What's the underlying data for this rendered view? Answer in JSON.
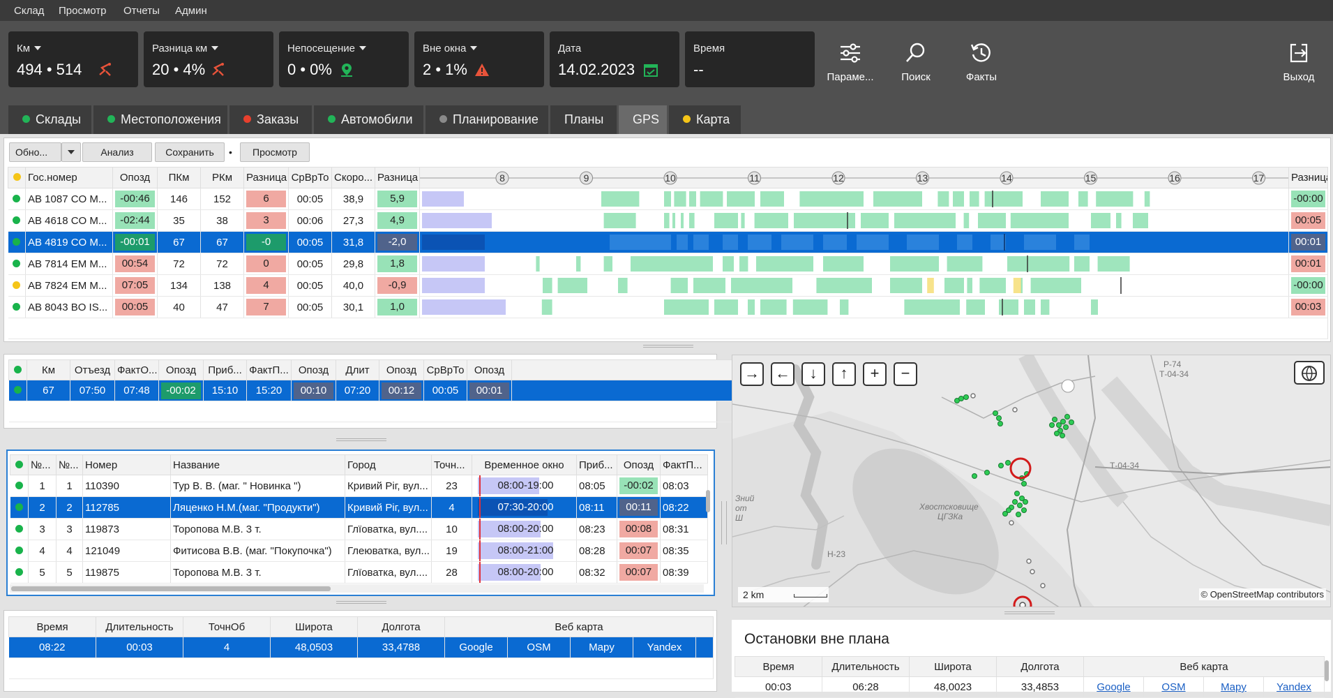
{
  "menu": [
    "Склад",
    "Просмотр",
    "Отчеты",
    "Админ"
  ],
  "kpis": [
    {
      "label": "Км",
      "value": "494 • 514",
      "icon": "route-icon",
      "icon_color": "#e8533a"
    },
    {
      "label": "Разница км",
      "value": "20 • 4%",
      "icon": "route-icon",
      "icon_color": "#e8533a"
    },
    {
      "label": "Непосещение",
      "value": "0 • 0%",
      "icon": "location-pin-icon",
      "icon_color": "#22b458"
    },
    {
      "label": "Вне окна",
      "value": "2 • 1%",
      "icon": "warning-icon",
      "icon_color": "#e8533a"
    },
    {
      "label": "Дата",
      "value": "14.02.2023",
      "icon": "calendar-check-icon",
      "icon_color": "#22b458"
    },
    {
      "label": "Время",
      "value": "--"
    }
  ],
  "toolbar": {
    "params": "Параме...",
    "search": "Поиск",
    "facts": "Факты",
    "exit": "Выход"
  },
  "tabs": [
    {
      "label": "Склады",
      "dot": "#22b458"
    },
    {
      "label": "Местоположения",
      "dot": "#22b458"
    },
    {
      "label": "Заказы",
      "dot": "#e8402d"
    },
    {
      "label": "Автомобили",
      "dot": "#22b458"
    },
    {
      "label": "Планирование",
      "dot": "#8a8a8a"
    },
    {
      "label": "Планы"
    },
    {
      "label": "GPS",
      "active": true
    },
    {
      "label": "Карта",
      "dot": "#f5c518"
    }
  ],
  "gps_toolbar": {
    "refresh": "Обно...",
    "analysis": "Анализ",
    "save": "Сохранить",
    "view": "Просмотр"
  },
  "vehicles": {
    "headers": [
      "Гос.номер",
      "Опозд",
      "ПКм",
      "РКм",
      "Разница",
      "СрВрТо",
      "Скоро...",
      "Разница",
      "Разница"
    ],
    "timeline_hours": [
      "8",
      "9",
      "10",
      "11",
      "12",
      "13",
      "14",
      "15",
      "16",
      "17"
    ],
    "rows": [
      {
        "status": "green",
        "plate": "AB 1087 CO M...",
        "late": "-00:46",
        "late_c": "green",
        "pkm": "146",
        "rkm": "152",
        "diff": "6",
        "diff_c": "red",
        "avg": "00:05",
        "speed": "38,9",
        "diff2": "5,9",
        "diff2_c": "green",
        "diff3": "-00:00",
        "diff3_c": "green"
      },
      {
        "status": "green",
        "plate": "AB 4618 CO M...",
        "late": "-02:44",
        "late_c": "green",
        "pkm": "35",
        "rkm": "38",
        "diff": "3",
        "diff_c": "red",
        "avg": "00:06",
        "speed": "27,3",
        "diff2": "4,9",
        "diff2_c": "green",
        "diff3": "00:05",
        "diff3_c": "red"
      },
      {
        "status": "green",
        "plate": "AB 4819 CO M...",
        "late": "-00:01",
        "late_c": "teal",
        "pkm": "67",
        "rkm": "67",
        "diff": "-0",
        "diff_c": "teal",
        "avg": "00:05",
        "speed": "31,8",
        "diff2": "-2,0",
        "diff2_c": "dk",
        "diff3": "00:01",
        "diff3_c": "dk",
        "selected": true
      },
      {
        "status": "green",
        "plate": "AB 7814 EM M...",
        "late": "00:54",
        "late_c": "red",
        "pkm": "72",
        "rkm": "72",
        "diff": "0",
        "diff_c": "red",
        "avg": "00:05",
        "speed": "29,8",
        "diff2": "1,8",
        "diff2_c": "green",
        "diff3": "00:01",
        "diff3_c": "red"
      },
      {
        "status": "yellow",
        "plate": "AB 7824 EM M...",
        "late": "07:05",
        "late_c": "red",
        "pkm": "134",
        "rkm": "138",
        "diff": "4",
        "diff_c": "red",
        "avg": "00:05",
        "speed": "40,0",
        "diff2": "-0,9",
        "diff2_c": "red",
        "diff3": "-00:00",
        "diff3_c": "green"
      },
      {
        "status": "green",
        "plate": "AB 8043 BO IS...",
        "late": "00:05",
        "late_c": "red",
        "pkm": "40",
        "rkm": "47",
        "diff": "7",
        "diff_c": "red",
        "avg": "00:05",
        "speed": "30,1",
        "diff2": "1,0",
        "diff2_c": "green",
        "diff3": "00:03",
        "diff3_c": "red"
      }
    ]
  },
  "trip": {
    "headers": [
      "Км",
      "Отъезд",
      "ФактО...",
      "Опозд",
      "Приб...",
      "ФактП...",
      "Опозд",
      "Длит",
      "Опозд",
      "СрВрТо",
      "Опозд"
    ],
    "row": [
      "67",
      "07:50",
      "07:48",
      "-00:02",
      "15:10",
      "15:20",
      "00:10",
      "07:20",
      "00:12",
      "00:05",
      "00:01"
    ]
  },
  "stops": {
    "headers": [
      "№...",
      "№...",
      "Номер",
      "Название",
      "Город",
      "Точн...",
      "Временное окно",
      "Приб...",
      "Опозд",
      "ФактП..."
    ],
    "rows": [
      {
        "n1": "1",
        "n2": "1",
        "num": "110390",
        "name": "Тур В. В. (маг. \" Новинка \")",
        "city": "Кривий Ріг, вул...",
        "acc": "23",
        "window": "08:00-19:00",
        "arr": "08:05",
        "late": "-00:02",
        "late_c": "green",
        "fact": "08:03"
      },
      {
        "n1": "2",
        "n2": "2",
        "num": "112785",
        "name": "Ляценко Н.М.(маг. \"Продукти\")",
        "city": "Кривий Ріг, вул...",
        "acc": "4",
        "window": "07:30-20:00",
        "arr": "08:11",
        "late": "00:11",
        "late_c": "dk",
        "fact": "08:22",
        "selected": true
      },
      {
        "n1": "3",
        "n2": "3",
        "num": "119873",
        "name": "Торопова М.В. 3 т.",
        "city": "Глїоватка, вул....",
        "acc": "10",
        "window": "08:00-20:00",
        "arr": "08:23",
        "late": "00:08",
        "late_c": "red",
        "fact": "08:31"
      },
      {
        "n1": "4",
        "n2": "4",
        "num": "121049",
        "name": "Фитисова В.В. (маг. \"Покупочка\")",
        "city": "Глеюватка, вул...",
        "acc": "19",
        "window": "08:00-21:00",
        "arr": "08:28",
        "late": "00:07",
        "late_c": "red",
        "fact": "08:35"
      },
      {
        "n1": "5",
        "n2": "5",
        "num": "119875",
        "name": "Торопова М.В. 3 т.",
        "city": "Глїоватка, вул....",
        "acc": "28",
        "window": "08:00-20:00",
        "arr": "08:32",
        "late": "00:07",
        "late_c": "red",
        "fact": "08:39"
      }
    ]
  },
  "gps_point": {
    "headers": [
      "Время",
      "Длительность",
      "ТочнОб",
      "Широта",
      "Долгота",
      "Веб карта"
    ],
    "row": {
      "time": "08:22",
      "duration": "00:03",
      "acc": "4",
      "lat": "48,0503",
      "lon": "33,4788"
    },
    "links": [
      "Google",
      "OSM",
      "Mapy",
      "Yandex"
    ]
  },
  "map": {
    "scale": "2 km",
    "attribution": "© OpenStreetMap contributors",
    "labels": [
      "Р-74",
      "Т-04-34",
      "Т-04-34",
      "Н-23",
      "Хвостсковище",
      "ЦГЗКа",
      "Зний",
      "от",
      "Ш"
    ]
  },
  "unplanned": {
    "title": "Остановки вне плана",
    "headers": [
      "Время",
      "Длительность",
      "Широта",
      "Долгота",
      "Веб карта"
    ],
    "row": {
      "time": "00:03",
      "duration": "06:28",
      "lat": "48,0023",
      "lon": "33,4853"
    },
    "links": [
      "Google",
      "OSM",
      "Mapy",
      "Yandex"
    ]
  }
}
